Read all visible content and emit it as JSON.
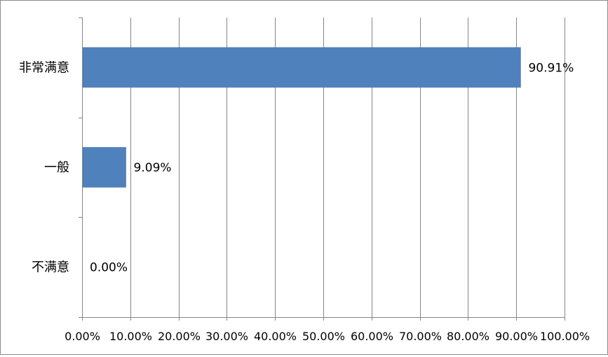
{
  "chart_data": {
    "type": "bar",
    "orientation": "horizontal",
    "categories": [
      "非常满意",
      "一般",
      "不满意"
    ],
    "values": [
      90.91,
      9.09,
      0.0
    ],
    "data_labels": [
      "90.91%",
      "9.09%",
      "0.00%"
    ],
    "x_ticks": [
      "0.00%",
      "10.00%",
      "20.00%",
      "30.00%",
      "40.00%",
      "50.00%",
      "60.00%",
      "70.00%",
      "80.00%",
      "90.00%",
      "100.00%"
    ],
    "xlim": [
      0,
      100
    ],
    "x_unit": "%",
    "grid": "vertical",
    "legend": "none",
    "bar_color": "#4f81bd",
    "gridline_color": "#868686",
    "title": "",
    "xlabel": "",
    "ylabel": ""
  }
}
